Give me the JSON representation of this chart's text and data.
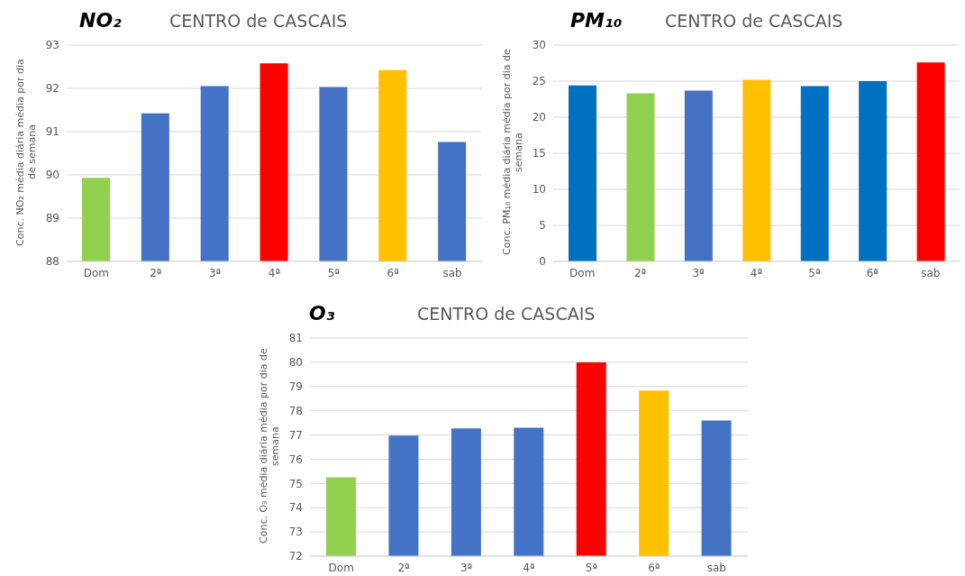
{
  "chart_data": [
    {
      "type": "bar",
      "title": "NO₂",
      "subtitle": "CENTRO de CASCAIS",
      "ylabel": "Conc. NO₂ média diária média por dia de semana",
      "categories": [
        "Dom",
        "2ª",
        "3ª",
        "4ª",
        "5ª",
        "6ª",
        "sab"
      ],
      "values": [
        89.93,
        91.42,
        92.05,
        92.58,
        92.03,
        92.42,
        90.76
      ],
      "colors": [
        "#92d050",
        "#4472c4",
        "#4472c4",
        "#ff0000",
        "#4472c4",
        "#ffc000",
        "#4472c4"
      ],
      "ylim": [
        88,
        93
      ],
      "yticks": [
        88,
        89,
        90,
        91,
        92,
        93
      ],
      "grid": "y",
      "legend": false
    },
    {
      "type": "bar",
      "title": "PM₁₀",
      "subtitle": "CENTRO de CASCAIS",
      "ylabel": "Conc. PM₁₀ média diária média por dia de semana",
      "categories": [
        "Dom",
        "2ª",
        "3ª",
        "4ª",
        "5ª",
        "6ª",
        "sab"
      ],
      "values": [
        24.4,
        23.3,
        23.7,
        25.2,
        24.3,
        25.0,
        27.6
      ],
      "colors": [
        "#0070c0",
        "#92d050",
        "#4472c4",
        "#ffc000",
        "#0070c0",
        "#0070c0",
        "#ff0000"
      ],
      "ylim": [
        0,
        30
      ],
      "yticks": [
        0,
        5,
        10,
        15,
        20,
        25,
        30
      ],
      "grid": "y",
      "legend": false
    },
    {
      "type": "bar",
      "title": "O₃",
      "subtitle": "CENTRO de CASCAIS",
      "ylabel": "Conc. O₃ média diária média por dia de semana",
      "categories": [
        "Dom",
        "2ª",
        "3ª",
        "4ª",
        "5ª",
        "6ª",
        "sab"
      ],
      "values": [
        75.25,
        76.97,
        77.27,
        77.3,
        80.0,
        78.83,
        77.6
      ],
      "colors": [
        "#92d050",
        "#4472c4",
        "#4472c4",
        "#4472c4",
        "#ff0000",
        "#ffc000",
        "#4472c4"
      ],
      "ylim": [
        72,
        81
      ],
      "yticks": [
        72,
        73,
        74,
        75,
        76,
        77,
        78,
        79,
        80,
        81
      ],
      "grid": "y",
      "legend": false
    }
  ]
}
